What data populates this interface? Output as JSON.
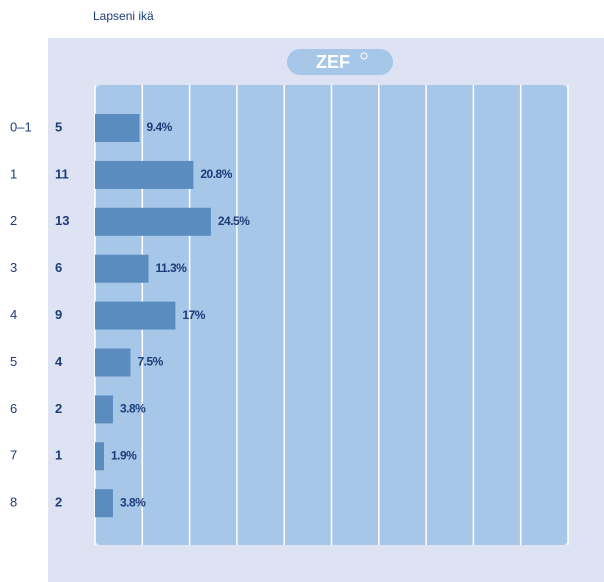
{
  "chart_data": {
    "type": "barh",
    "title": "Lapseni ikä",
    "logo": "ZEF",
    "categories": [
      "0–1",
      "1",
      "2",
      "3",
      "4",
      "5",
      "6",
      "7",
      "8"
    ],
    "counts": [
      5,
      11,
      13,
      6,
      9,
      4,
      2,
      1,
      2
    ],
    "values": [
      9.4,
      20.8,
      24.5,
      11.3,
      17,
      7.5,
      3.8,
      1.9,
      3.8
    ],
    "value_labels": [
      "9.4%",
      "20.8%",
      "24.5%",
      "11.3%",
      "17%",
      "7.5%",
      "3.8%",
      "1.9%",
      "3.8%"
    ],
    "color": "#5a8cc0",
    "xlim": [
      0,
      100
    ],
    "xticks": [
      0,
      10,
      20,
      30,
      40,
      50,
      60,
      70,
      80,
      90,
      100
    ],
    "grid": true
  }
}
